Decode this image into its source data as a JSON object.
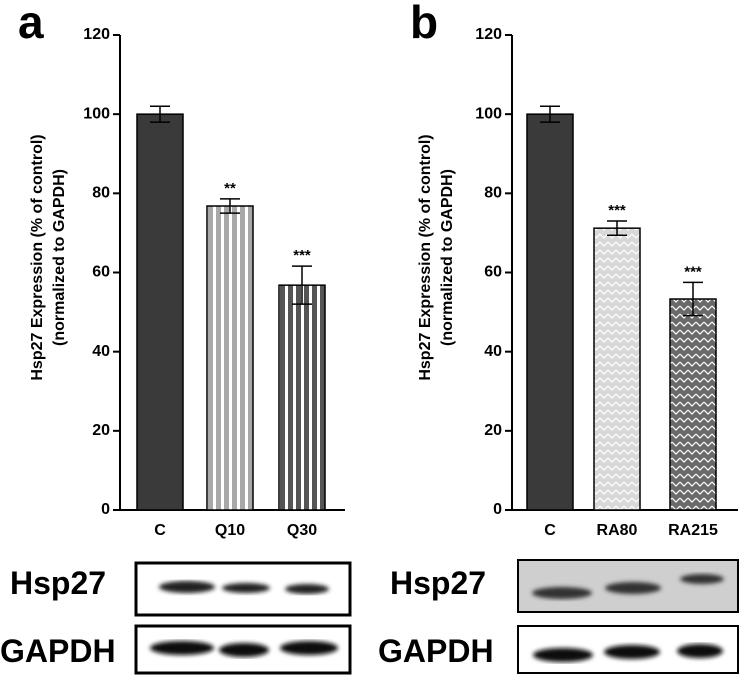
{
  "chart_data": [
    {
      "type": "bar",
      "panel": "a",
      "y_label": [
        "Hsp27 Expression (% of control)",
        "(normalized to GAPDH)"
      ],
      "categories": [
        "C",
        "Q10",
        "Q30"
      ],
      "values": [
        100,
        76.8,
        56.8
      ],
      "errors": [
        2,
        1.8,
        4.8
      ],
      "significance": [
        null,
        "**",
        "***"
      ],
      "colors": [
        "#3a3a3a",
        "#a8a8a8",
        "#555555"
      ],
      "patterns": [
        "solid",
        "stripes",
        "stripes"
      ],
      "ylim": [
        0,
        120
      ],
      "yticks": [
        0,
        20,
        40,
        60,
        80,
        100,
        120
      ],
      "blot_labels": [
        "Hsp27",
        "GAPDH"
      ]
    },
    {
      "type": "bar",
      "panel": "b",
      "y_label": [
        "Hsp27 Expression (% of control)",
        "(normalized to GAPDH)"
      ],
      "categories": [
        "C",
        "RA80",
        "RA215"
      ],
      "values": [
        100,
        71.2,
        53.3
      ],
      "errors": [
        2,
        1.8,
        4.2
      ],
      "significance": [
        null,
        "***",
        "***"
      ],
      "colors": [
        "#3a3a3a",
        "#d8d8d8",
        "#6a6a6a"
      ],
      "patterns": [
        "solid",
        "weave",
        "weave"
      ],
      "ylim": [
        0,
        120
      ],
      "yticks": [
        0,
        20,
        40,
        60,
        80,
        100,
        120
      ],
      "blot_labels": [
        "Hsp27",
        "GAPDH"
      ]
    }
  ]
}
